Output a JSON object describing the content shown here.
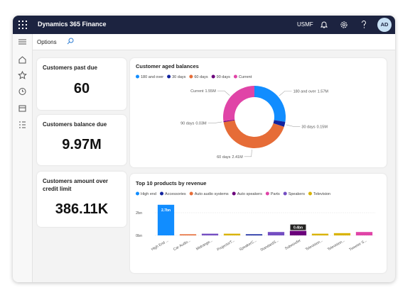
{
  "app": {
    "title": "Dynamics 365 Finance",
    "company": "USMF",
    "avatar": "AD"
  },
  "toolbar": {
    "options": "Options"
  },
  "tiles": [
    {
      "title": "Customers past due",
      "value": "60"
    },
    {
      "title": "Customers balance due",
      "value": "9.97M"
    },
    {
      "title": "Customers amount over credit limit",
      "value": "386.11K"
    }
  ],
  "chart_data": [
    {
      "type": "pie",
      "title": "Customer aged balances",
      "categories": [
        "180 and over",
        "30 days",
        "60 days",
        "90 days",
        "Current"
      ],
      "values": [
        1.57,
        0.15,
        2.41,
        0.03,
        1.55
      ],
      "value_labels": [
        "1.57M",
        "0.15M",
        "2.41M",
        "0.03M",
        "1.55M"
      ],
      "colors": [
        "#118dff",
        "#12239e",
        "#e66c37",
        "#6b007b",
        "#e044a7"
      ]
    },
    {
      "type": "bar",
      "title": "Top 10 products by revenue",
      "series": [
        {
          "name": "High end",
          "color": "#118dff"
        },
        {
          "name": "Accessories",
          "color": "#12239e"
        },
        {
          "name": "Auto audio systems",
          "color": "#e66c37"
        },
        {
          "name": "Auto speakers",
          "color": "#6b007b"
        },
        {
          "name": "Parts",
          "color": "#e044a7"
        },
        {
          "name": "Speakers",
          "color": "#744ec2"
        },
        {
          "name": "Television",
          "color": "#d9b300"
        }
      ],
      "categories": [
        "High End ...",
        "Car Audio...",
        "Midrange...",
        "ProjectorT...",
        "SpeakerC...",
        "StandardS...",
        "Subwoofer",
        "Television...",
        "Television...",
        "Tweeter S..."
      ],
      "values": [
        2.7,
        0.1,
        0.15,
        0.15,
        0.1,
        0.3,
        0.4,
        0.15,
        0.2,
        0.3
      ],
      "value_labels": [
        "2.7bn",
        null,
        null,
        null,
        null,
        null,
        "0.4bn",
        null,
        null,
        null
      ],
      "colors": [
        "#118dff",
        "#e66c37",
        "#744ec2",
        "#d9b300",
        "#12239e",
        "#744ec2",
        "#6b007b",
        "#d9b300",
        "#d9b300",
        "#e044a7"
      ],
      "ylim": [
        0,
        3
      ],
      "yticks": [
        {
          "value": 2,
          "label": "2bn"
        },
        {
          "value": 0,
          "label": "0bn"
        }
      ],
      "grid": true
    }
  ]
}
